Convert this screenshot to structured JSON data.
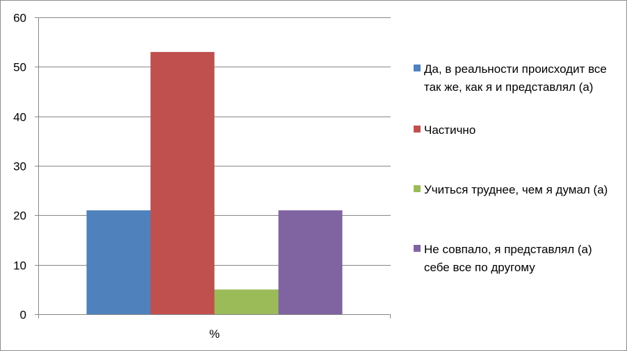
{
  "chart_data": {
    "type": "bar",
    "categories": [
      "%"
    ],
    "series": [
      {
        "name": "Да, в реальности происходит все так же, как я и представлял (а)",
        "values": [
          21
        ],
        "color": "#4F81BD"
      },
      {
        "name": "Частично",
        "values": [
          53
        ],
        "color": "#C0504D"
      },
      {
        "name": "Учиться труднее, чем я думал (а)",
        "values": [
          5
        ],
        "color": "#9BBB59"
      },
      {
        "name": "Не совпало, я представлял (а) себе все по другому",
        "values": [
          21
        ],
        "color": "#8064A2"
      }
    ],
    "ylim": [
      0,
      60
    ],
    "yticks": [
      0,
      10,
      20,
      30,
      40,
      50,
      60
    ],
    "grid": true,
    "legend_position": "right"
  }
}
